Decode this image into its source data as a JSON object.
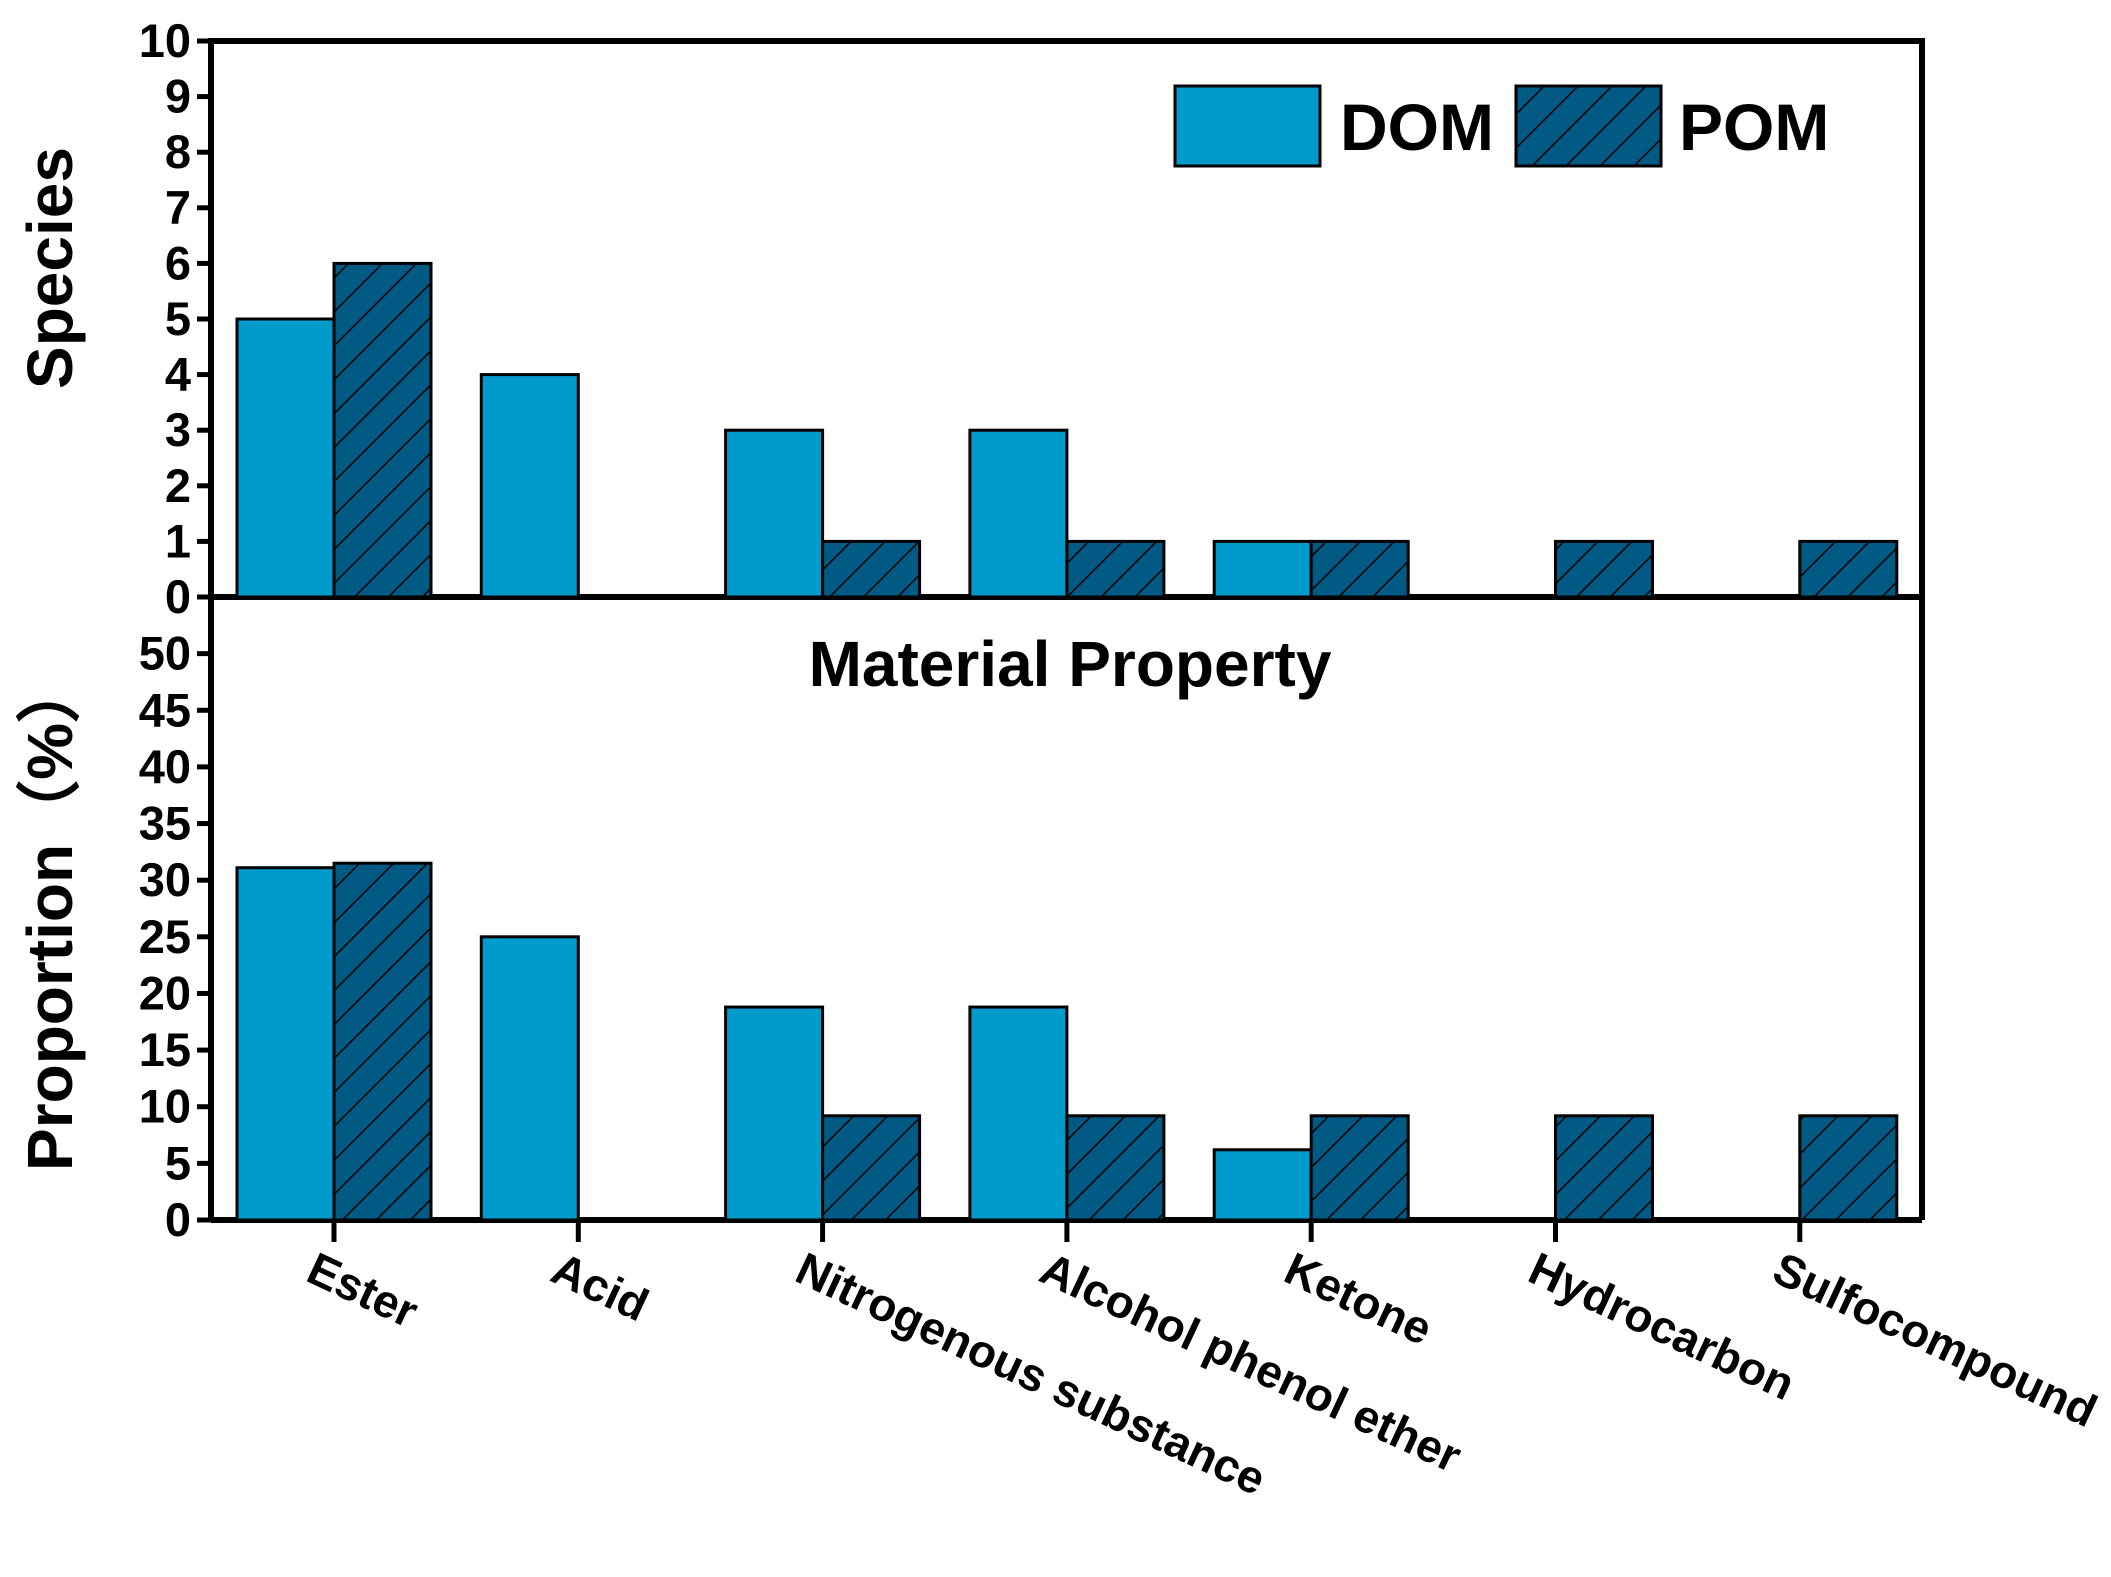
{
  "colors": {
    "dom": "#009bca",
    "pom": "#005a84",
    "outline": "#000000"
  },
  "legend": [
    {
      "name": "DOM",
      "pattern": "solid"
    },
    {
      "name": "POM",
      "pattern": "hatch"
    }
  ],
  "center_title": "Material Property",
  "chart_data": [
    {
      "type": "bar",
      "panel": "top",
      "ylabel": "Species",
      "ylim": [
        0,
        10
      ],
      "yticks": [
        "0",
        "1",
        "2",
        "3",
        "4",
        "5",
        "6",
        "7",
        "8",
        "9",
        "10"
      ],
      "categories": [
        "Ester",
        "Acid",
        "Nitrogenous substance",
        "Alcohol phenol ether",
        "Ketone",
        "Hydrocarbon",
        "Sulfocompound"
      ],
      "series": [
        {
          "name": "DOM",
          "values": [
            5,
            4,
            3,
            3,
            1,
            0,
            0
          ]
        },
        {
          "name": "POM",
          "values": [
            6,
            0,
            1,
            1,
            1,
            1,
            1
          ]
        }
      ]
    },
    {
      "type": "bar",
      "panel": "bottom",
      "ylabel": "Proportion（%）",
      "xlabel": "Material Property",
      "ylim": [
        0,
        55
      ],
      "yticks": [
        "0",
        "5",
        "10",
        "15",
        "20",
        "25",
        "30",
        "35",
        "40",
        "45",
        "50"
      ],
      "categories": [
        "Ester",
        "Acid",
        "Nitrogenous substance",
        "Alcohol phenol ether",
        "Ketone",
        "Hydrocarbon",
        "Sulfocompound"
      ],
      "series": [
        {
          "name": "DOM",
          "values": [
            31.1,
            25,
            18.8,
            18.8,
            6.2,
            0,
            0
          ]
        },
        {
          "name": "POM",
          "values": [
            31.5,
            0,
            9.2,
            9.2,
            9.2,
            9.2,
            9.2
          ]
        }
      ]
    }
  ]
}
